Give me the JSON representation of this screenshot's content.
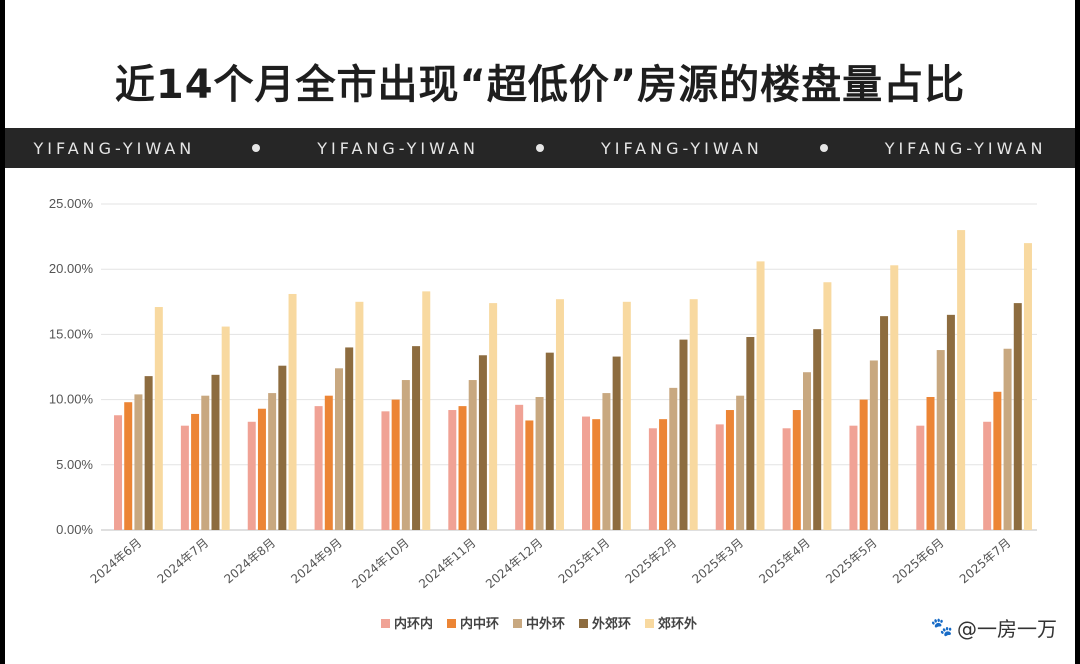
{
  "header": {
    "title": "近14个月全市出现“超低价”房源的楼盘量占比"
  },
  "banner": {
    "items": [
      "YIFANG-YIWAN",
      "YIFANG-YIWAN",
      "YIFANG-YIWAN",
      "YIFANG-YIWAN"
    ]
  },
  "watermark": {
    "text": "@一房一万",
    "icon": "paw-icon"
  },
  "chart_data": {
    "type": "bar",
    "title": "",
    "xlabel": "",
    "ylabel": "",
    "ylim": [
      0,
      25
    ],
    "yticks": [
      "0.00%",
      "5.00%",
      "10.00%",
      "15.00%",
      "20.00%",
      "25.00%"
    ],
    "grid": true,
    "legend_position": "bottom",
    "categories": [
      "2024年6月",
      "2024年7月",
      "2024年8月",
      "2024年9月",
      "2024年10月",
      "2024年11月",
      "2024年12月",
      "2025年1月",
      "2025年2月",
      "2025年3月",
      "2025年4月",
      "2025年5月",
      "2025年6月",
      "2025年7月"
    ],
    "series": [
      {
        "name": "内环内",
        "color": "#f0a295",
        "values": [
          8.8,
          8.0,
          8.3,
          9.5,
          9.1,
          9.2,
          9.6,
          8.7,
          7.8,
          8.1,
          7.8,
          8.0,
          8.0,
          8.3
        ]
      },
      {
        "name": "内中环",
        "color": "#ec8535",
        "values": [
          9.8,
          8.9,
          9.3,
          10.3,
          10.0,
          9.5,
          8.4,
          8.5,
          8.5,
          9.2,
          9.2,
          10.0,
          10.2,
          10.6
        ]
      },
      {
        "name": "中外环",
        "color": "#c8a880",
        "values": [
          10.4,
          10.3,
          10.5,
          12.4,
          11.5,
          11.5,
          10.2,
          10.5,
          10.9,
          10.3,
          12.1,
          13.0,
          13.8,
          13.9
        ]
      },
      {
        "name": "外郊环",
        "color": "#8d6c3f",
        "values": [
          11.8,
          11.9,
          12.6,
          14.0,
          14.1,
          13.4,
          13.6,
          13.3,
          14.6,
          14.8,
          15.4,
          16.4,
          16.5,
          17.4
        ]
      },
      {
        "name": "郊环外",
        "color": "#f8d9a0",
        "values": [
          17.1,
          15.6,
          18.1,
          17.5,
          18.3,
          17.4,
          17.7,
          17.5,
          17.7,
          20.6,
          19.0,
          20.3,
          23.0,
          22.0
        ]
      }
    ]
  }
}
